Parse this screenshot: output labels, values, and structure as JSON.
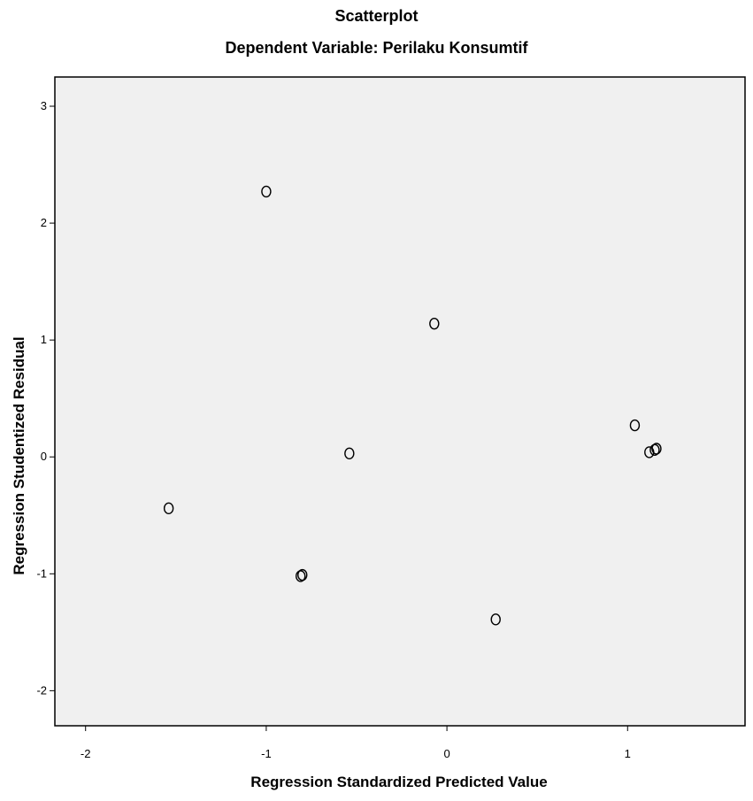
{
  "chart_data": {
    "type": "scatter",
    "title": "Scatterplot",
    "subtitle": "Dependent Variable: Perilaku Konsumtif",
    "xlabel": "Regression Standardized Predicted Value",
    "ylabel": "Regression Studentized Residual",
    "xlim": [
      -2.17,
      1.65
    ],
    "ylim": [
      -2.3,
      3.25
    ],
    "xticks": [
      "-2",
      "-1",
      "0",
      "1"
    ],
    "yticks": [
      "-2",
      "-1",
      "0",
      "1",
      "2",
      "3"
    ],
    "grid": false,
    "marker": "open-circle",
    "colors": {
      "plot_background": "#f0f0f0",
      "marker": "#000000",
      "axis": "#000000"
    },
    "points": [
      {
        "x": -1.0,
        "y": 2.27
      },
      {
        "x": -0.07,
        "y": 1.14
      },
      {
        "x": 1.04,
        "y": 0.27
      },
      {
        "x": 1.12,
        "y": 0.04
      },
      {
        "x": 1.16,
        "y": 0.07
      },
      {
        "x": 1.15,
        "y": 0.06
      },
      {
        "x": -0.54,
        "y": 0.03
      },
      {
        "x": -1.54,
        "y": -0.44
      },
      {
        "x": -0.81,
        "y": -1.02
      },
      {
        "x": -0.8,
        "y": -1.01
      },
      {
        "x": 0.27,
        "y": -1.39
      }
    ]
  }
}
